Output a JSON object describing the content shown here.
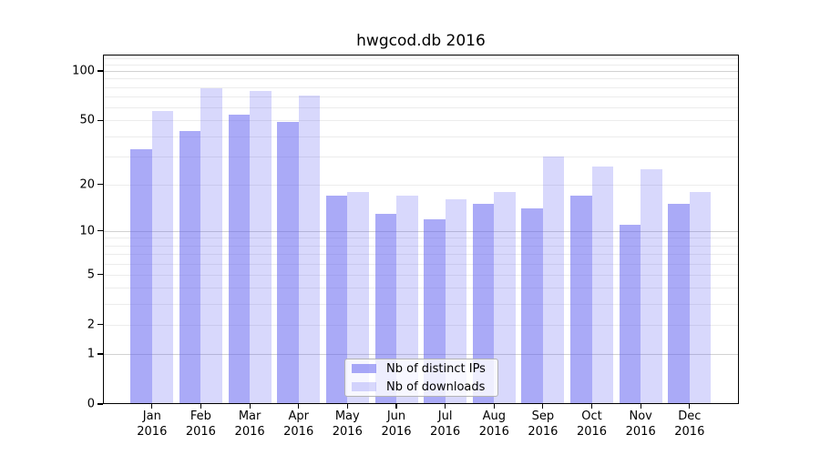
{
  "chart_data": {
    "type": "bar",
    "title": "hwgcod.db 2016",
    "categories": [
      "Jan 2016",
      "Feb 2016",
      "Mar 2016",
      "Apr 2016",
      "May 2016",
      "Jun 2016",
      "Jul 2016",
      "Aug 2016",
      "Sep 2016",
      "Oct 2016",
      "Nov 2016",
      "Dec 2016"
    ],
    "series": [
      {
        "name": "Nb of distinct IPs",
        "color": "rgba(85,85,240,0.50)",
        "values": [
          33,
          43,
          54,
          49,
          17,
          13,
          12,
          15,
          14,
          17,
          11,
          15
        ]
      },
      {
        "name": "Nb of downloads",
        "color": "rgba(85,85,240,0.23)",
        "values": [
          57,
          79,
          76,
          71,
          18,
          17,
          16,
          18,
          30,
          26,
          25,
          18
        ]
      }
    ],
    "xlabel": "",
    "ylabel": "",
    "yscale": "log1p",
    "ylim": [
      0,
      125
    ],
    "ytick_labels": [
      100,
      50,
      20,
      10,
      5,
      2,
      1,
      0
    ],
    "grid": {
      "major_values": [
        1,
        10,
        100
      ],
      "minor_values": [
        2,
        3,
        4,
        5,
        6,
        7,
        8,
        9,
        20,
        30,
        40,
        50,
        60,
        70,
        80,
        90,
        110,
        120
      ],
      "major_color": "#d2d2d2",
      "minor_color": "#ececec"
    },
    "legend_position": "lower center",
    "axis_color": "#000000",
    "background_color": "#ffffff"
  }
}
